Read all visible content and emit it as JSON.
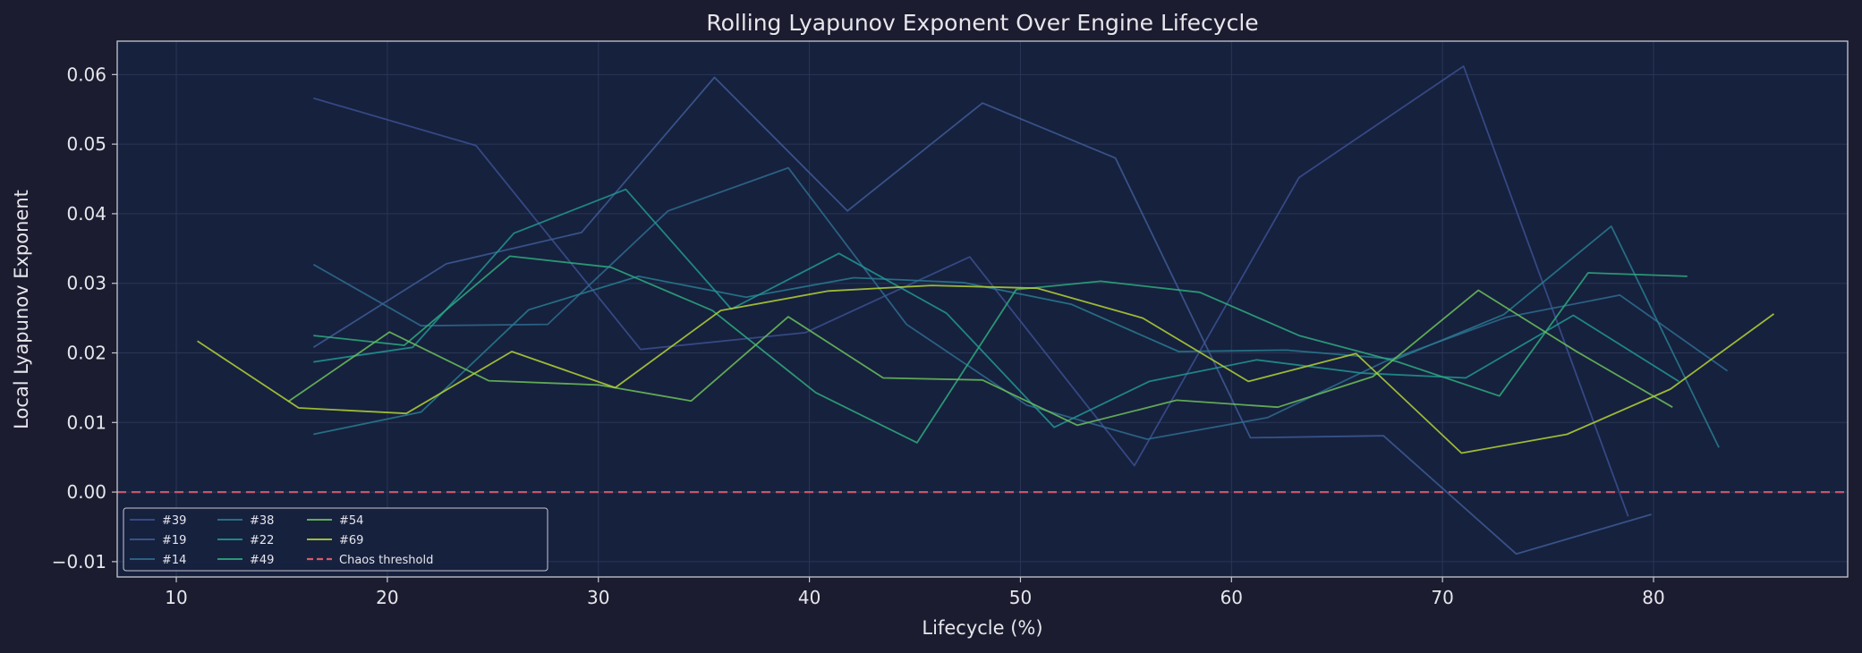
{
  "chart_data": {
    "type": "line",
    "title": "Rolling Lyapunov Exponent Over Engine Lifecycle",
    "xlabel": "Lifecycle (%)",
    "ylabel": "Local Lyapunov Exponent",
    "xlim": [
      7.2,
      89.2
    ],
    "ylim": [
      -0.0122,
      0.0648
    ],
    "xticks": [
      10,
      20,
      30,
      40,
      50,
      60,
      70,
      80
    ],
    "xtick_labels": [
      "10",
      "20",
      "30",
      "40",
      "50",
      "60",
      "70",
      "80"
    ],
    "yticks": [
      -0.01,
      0.0,
      0.01,
      0.02,
      0.03,
      0.04,
      0.05,
      0.06
    ],
    "ytick_labels": [
      "−0.01",
      "0.00",
      "0.01",
      "0.02",
      "0.03",
      "0.04",
      "0.05",
      "0.06"
    ],
    "grid": true,
    "legend_position": "bottom-left",
    "legend_columns": 4,
    "background": "#16213e",
    "series": [
      {
        "name": "#39",
        "color": "#3b4f8f",
        "x": [
          16.5,
          24.2,
          32.0,
          39.8,
          47.6,
          55.4,
          63.2,
          71.0,
          78.8
        ],
        "y": [
          0.0566,
          0.0498,
          0.0205,
          0.0229,
          0.0338,
          0.0038,
          0.0452,
          0.0612,
          -0.0035
        ]
      },
      {
        "name": "#19",
        "color": "#3d5a94",
        "x": [
          16.5,
          22.8,
          29.2,
          35.5,
          41.8,
          48.2,
          54.5,
          60.9,
          67.2,
          73.5,
          79.9
        ],
        "y": [
          0.0208,
          0.0328,
          0.0373,
          0.0596,
          0.0404,
          0.0559,
          0.048,
          0.0078,
          0.0081,
          -0.0089,
          -0.0032
        ]
      },
      {
        "name": "#14",
        "color": "#2e6b8e",
        "x": [
          16.5,
          21.6,
          27.6,
          33.3,
          39.0,
          44.6,
          50.3,
          56.0,
          61.7,
          67.3,
          73.0,
          78.4,
          83.5
        ],
        "y": [
          0.0327,
          0.0239,
          0.0241,
          0.0404,
          0.0466,
          0.0241,
          0.0125,
          0.0076,
          0.0107,
          0.0188,
          0.0251,
          0.0283,
          0.0174
        ]
      },
      {
        "name": "#38",
        "color": "#287a8e",
        "x": [
          16.5,
          21.6,
          26.7,
          31.9,
          37.0,
          42.1,
          47.3,
          52.4,
          57.5,
          62.6,
          67.8,
          72.9,
          78.0,
          83.1
        ],
        "y": [
          0.0083,
          0.0115,
          0.0262,
          0.031,
          0.028,
          0.0308,
          0.0301,
          0.027,
          0.0202,
          0.0204,
          0.0191,
          0.0255,
          0.0382,
          0.0064
        ]
      },
      {
        "name": "#22",
        "color": "#219690",
        "x": [
          16.5,
          21.2,
          26.0,
          31.3,
          36.3,
          41.4,
          46.5,
          51.6,
          56.1,
          61.2,
          66.2,
          71.1,
          76.2,
          81.2
        ],
        "y": [
          0.0187,
          0.0208,
          0.0372,
          0.0435,
          0.0263,
          0.0343,
          0.0257,
          0.0093,
          0.0159,
          0.019,
          0.0171,
          0.0164,
          0.0254,
          0.0159
        ]
      },
      {
        "name": "#49",
        "color": "#2eaa7e",
        "x": [
          16.5,
          20.8,
          25.8,
          30.6,
          35.4,
          40.3,
          45.1,
          49.8,
          53.8,
          58.5,
          63.2,
          67.9,
          72.7,
          76.9,
          81.6
        ],
        "y": [
          0.0225,
          0.0211,
          0.0339,
          0.0323,
          0.0261,
          0.0143,
          0.0071,
          0.0291,
          0.0303,
          0.0287,
          0.0225,
          0.0187,
          0.0138,
          0.0315,
          0.031
        ]
      },
      {
        "name": "#54",
        "color": "#6cc05a",
        "x": [
          15.3,
          20.1,
          24.8,
          30.0,
          34.4,
          39.0,
          43.5,
          48.2,
          52.7,
          57.4,
          62.2,
          66.7,
          71.7,
          76.3,
          80.9
        ],
        "y": [
          0.013,
          0.023,
          0.016,
          0.0154,
          0.0131,
          0.0252,
          0.0164,
          0.0161,
          0.0096,
          0.0132,
          0.0122,
          0.0166,
          0.029,
          0.0203,
          0.0122
        ]
      },
      {
        "name": "#69",
        "color": "#b5d234",
        "x": [
          11.0,
          15.8,
          20.9,
          25.9,
          30.8,
          35.8,
          40.9,
          45.8,
          50.8,
          55.8,
          60.8,
          65.9,
          70.9,
          75.9,
          80.8,
          85.7
        ],
        "y": [
          0.0217,
          0.0121,
          0.0113,
          0.0202,
          0.015,
          0.0261,
          0.0289,
          0.0297,
          0.0293,
          0.025,
          0.0159,
          0.0199,
          0.0056,
          0.0083,
          0.0148,
          0.0256
        ]
      }
    ],
    "threshold": {
      "name": "Chaos threshold",
      "y": 0.0,
      "color": "#d85a6a",
      "style": "dashed"
    }
  }
}
